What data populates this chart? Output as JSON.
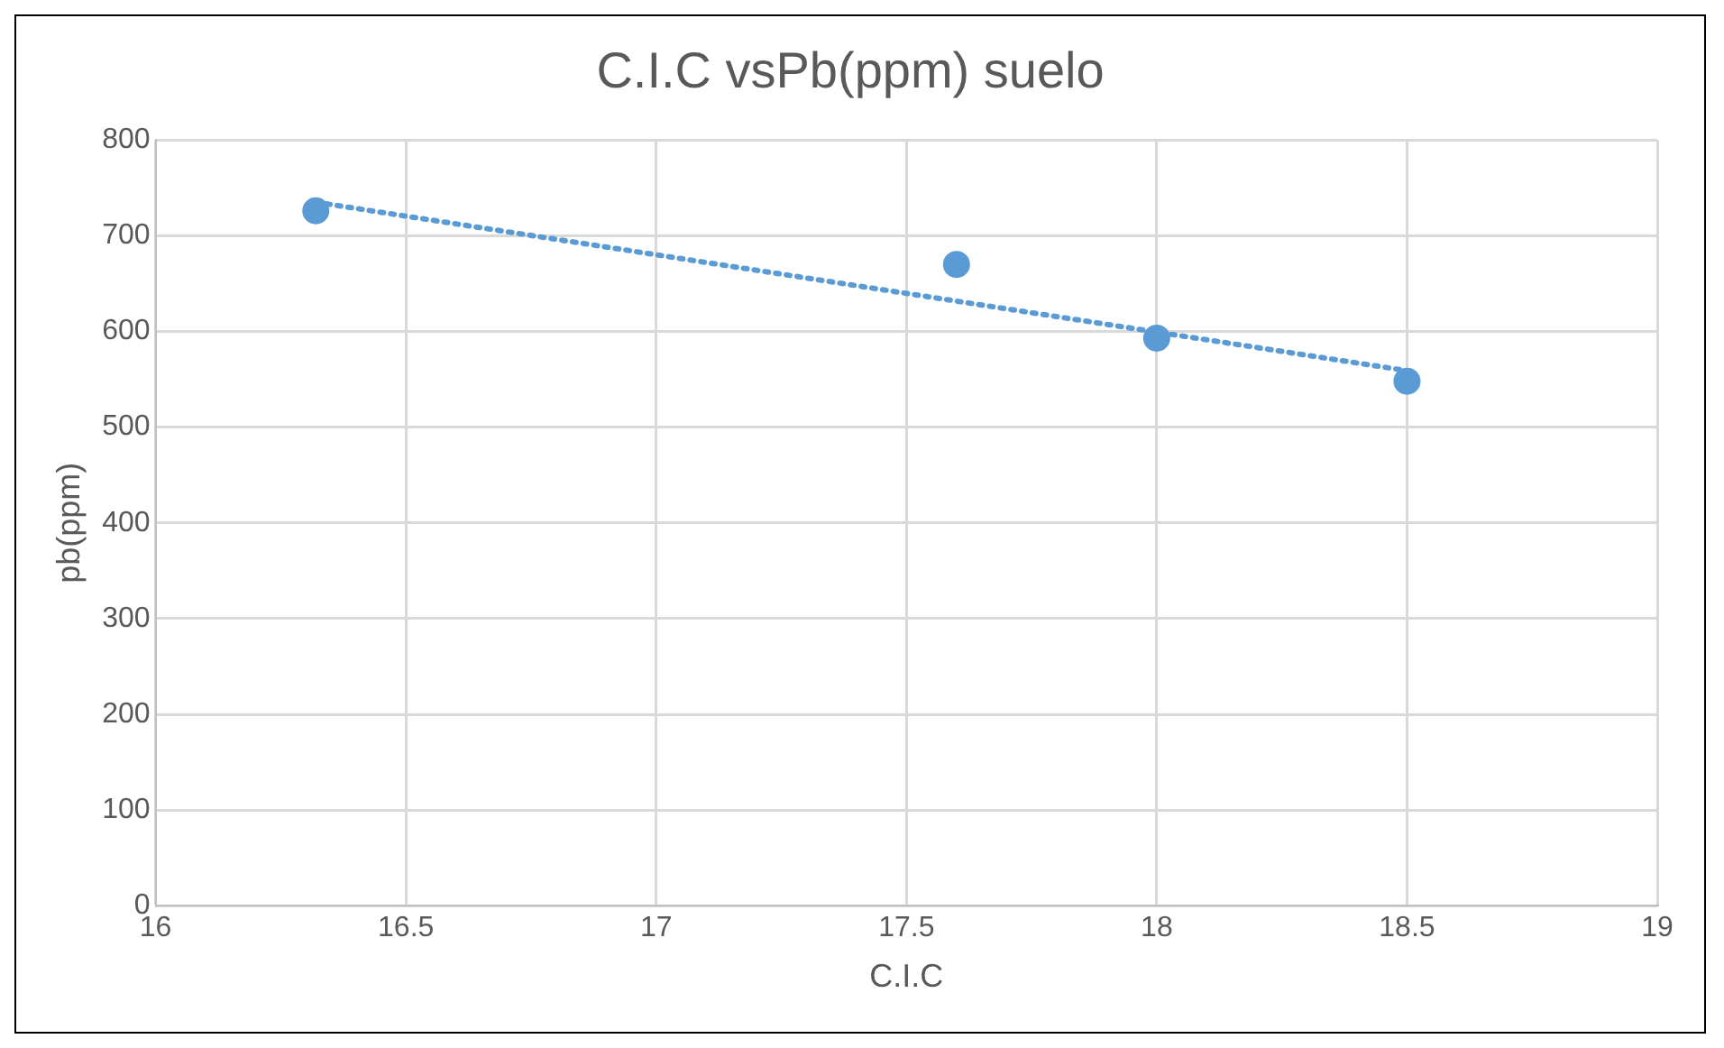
{
  "chart_data": {
    "type": "scatter",
    "title": "C.I.C vsPb(ppm) suelo",
    "xlabel": "C.I.C",
    "ylabel": "pb(ppm)",
    "series": [
      {
        "color": "#5b9bd5",
        "x": [
          16.32,
          17.6,
          18.0,
          18.5
        ],
        "values": [
          726,
          670,
          593,
          548
        ],
        "marker": "circle"
      },
      {
        "type": "line",
        "color": "#5b9bd5",
        "x": [
          16.32,
          18.5
        ],
        "values": [
          735,
          559
        ],
        "line_style": "dotted",
        "marker": "none"
      }
    ],
    "xlim": [
      16,
      19
    ],
    "xticks": [
      16,
      16.5,
      17,
      17.5,
      18,
      18.5,
      19
    ],
    "ylim": [
      0,
      800
    ],
    "yticks": [
      0,
      100,
      200,
      300,
      400,
      500,
      600,
      700,
      800
    ],
    "grid": true,
    "legend": false
  }
}
